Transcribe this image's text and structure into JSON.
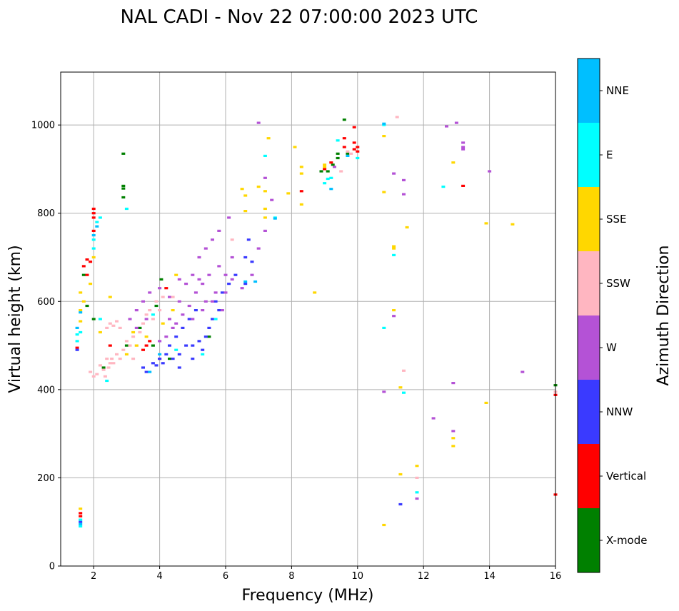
{
  "chart_data": {
    "type": "scatter",
    "title": "NAL CADI - Nov 22 07:00:00 2023 UTC",
    "xlabel": "Frequency (MHz)",
    "ylabel": "Virtual height (km)",
    "xlim": [
      1,
      16
    ],
    "ylim": [
      0,
      1120
    ],
    "xticks": [
      "2",
      "4",
      "6",
      "8",
      "10",
      "12",
      "14",
      "16"
    ],
    "yticks": [
      "0",
      "200",
      "400",
      "600",
      "800",
      "1000"
    ],
    "grid": true,
    "colorbar": {
      "label": "Azimuth Direction",
      "categories": [
        "X-mode",
        "Vertical",
        "NNW",
        "W",
        "SSW",
        "SSE",
        "E",
        "NNE"
      ],
      "colors": [
        "#008000",
        "#ff0000",
        "#3a3aff",
        "#b452d6",
        "#ffb6c1",
        "#ffd700",
        "#00ffff",
        "#00bfff"
      ]
    },
    "series": [
      {
        "name": "X-mode",
        "color": "#008000",
        "points": [
          [
            2.9,
            935
          ],
          [
            2.9,
            862
          ],
          [
            2.9,
            856
          ],
          [
            2.9,
            836
          ],
          [
            1.7,
            660
          ],
          [
            1.8,
            590
          ],
          [
            2.0,
            560
          ],
          [
            4.05,
            650
          ],
          [
            3.9,
            590
          ],
          [
            3.4,
            540
          ],
          [
            3.0,
            500
          ],
          [
            3.8,
            500
          ],
          [
            4.3,
            470
          ],
          [
            5.5,
            520
          ],
          [
            8.9,
            895
          ],
          [
            9.1,
            895
          ],
          [
            9.25,
            910
          ],
          [
            9.4,
            925
          ],
          [
            9.4,
            935
          ],
          [
            9.6,
            1012
          ],
          [
            9.7,
            935
          ],
          [
            16,
            410
          ],
          [
            2.3,
            450
          ]
        ]
      },
      {
        "name": "Vertical",
        "color": "#ff0000",
        "points": [
          [
            2.0,
            810
          ],
          [
            2.0,
            800
          ],
          [
            2.0,
            790
          ],
          [
            2.0,
            760
          ],
          [
            1.8,
            695
          ],
          [
            1.9,
            690
          ],
          [
            1.7,
            680
          ],
          [
            1.8,
            660
          ],
          [
            1.5,
            495
          ],
          [
            1.6,
            120
          ],
          [
            1.6,
            113
          ],
          [
            3.6,
            500
          ],
          [
            3.7,
            510
          ],
          [
            4.0,
            470
          ],
          [
            3.5,
            490
          ],
          [
            4.2,
            630
          ],
          [
            8.3,
            850
          ],
          [
            9.0,
            900
          ],
          [
            9.2,
            915
          ],
          [
            9.6,
            970
          ],
          [
            9.6,
            950
          ],
          [
            9.9,
            995
          ],
          [
            9.9,
            960
          ],
          [
            9.9,
            945
          ],
          [
            10.0,
            940
          ],
          [
            10.0,
            950
          ],
          [
            13.2,
            862
          ],
          [
            16,
            388
          ],
          [
            16,
            162
          ],
          [
            2.5,
            500
          ]
        ]
      },
      {
        "name": "NNW",
        "color": "#3a3aff",
        "points": [
          [
            3.6,
            440
          ],
          [
            3.9,
            455
          ],
          [
            4.1,
            460
          ],
          [
            4.4,
            470
          ],
          [
            4.6,
            480
          ],
          [
            4.8,
            500
          ],
          [
            5.0,
            500
          ],
          [
            5.2,
            510
          ],
          [
            5.4,
            520
          ],
          [
            5.5,
            540
          ],
          [
            5.6,
            560
          ],
          [
            5.7,
            600
          ],
          [
            5.9,
            620
          ],
          [
            6.1,
            640
          ],
          [
            6.3,
            660
          ],
          [
            6.6,
            700
          ],
          [
            6.7,
            740
          ],
          [
            6.8,
            690
          ],
          [
            4.3,
            500
          ],
          [
            4.5,
            520
          ],
          [
            4.7,
            540
          ],
          [
            4.9,
            560
          ],
          [
            5.1,
            580
          ],
          [
            4.2,
            480
          ],
          [
            4.0,
            470
          ],
          [
            3.8,
            460
          ],
          [
            3.5,
            450
          ],
          [
            4.6,
            450
          ],
          [
            5.0,
            470
          ],
          [
            5.3,
            490
          ],
          [
            5.8,
            580
          ],
          [
            6.6,
            640
          ],
          [
            1.5,
            490
          ],
          [
            1.6,
            100
          ],
          [
            11.3,
            140
          ]
        ]
      },
      {
        "name": "W",
        "color": "#b452d6",
        "points": [
          [
            3.1,
            560
          ],
          [
            3.3,
            580
          ],
          [
            3.5,
            600
          ],
          [
            3.7,
            620
          ],
          [
            4.0,
            630
          ],
          [
            4.3,
            610
          ],
          [
            4.6,
            600
          ],
          [
            4.8,
            640
          ],
          [
            5.0,
            660
          ],
          [
            5.2,
            700
          ],
          [
            5.4,
            720
          ],
          [
            5.6,
            740
          ],
          [
            5.8,
            760
          ],
          [
            6.1,
            790
          ],
          [
            6.2,
            700
          ],
          [
            5.8,
            680
          ],
          [
            5.5,
            660
          ],
          [
            5.3,
            640
          ],
          [
            5.1,
            620
          ],
          [
            4.9,
            590
          ],
          [
            4.7,
            570
          ],
          [
            4.5,
            550
          ],
          [
            4.4,
            540
          ],
          [
            4.2,
            520
          ],
          [
            4.0,
            510
          ],
          [
            5.0,
            560
          ],
          [
            5.3,
            580
          ],
          [
            5.6,
            600
          ],
          [
            5.9,
            580
          ],
          [
            6.0,
            620
          ],
          [
            6.2,
            650
          ],
          [
            6.5,
            630
          ],
          [
            6.8,
            660
          ],
          [
            7.0,
            720
          ],
          [
            7.2,
            760
          ],
          [
            5.4,
            600
          ],
          [
            5.7,
            620
          ],
          [
            6.0,
            660
          ],
          [
            3.3,
            540
          ],
          [
            3.6,
            560
          ],
          [
            4.6,
            650
          ],
          [
            5.2,
            650
          ],
          [
            4.3,
            560
          ],
          [
            7.4,
            830
          ],
          [
            7.2,
            880
          ],
          [
            11.1,
            890
          ],
          [
            11.4,
            875
          ],
          [
            11.4,
            843
          ],
          [
            10.8,
            395
          ],
          [
            11.1,
            567
          ],
          [
            11.8,
            153
          ],
          [
            12.3,
            335
          ],
          [
            12.9,
            415
          ],
          [
            12.9,
            306
          ],
          [
            13.0,
            1005
          ],
          [
            13.2,
            960
          ],
          [
            13.2,
            950
          ],
          [
            13.2,
            945
          ],
          [
            14.0,
            895
          ],
          [
            15.0,
            440
          ],
          [
            12.7,
            997
          ],
          [
            9.3,
            905
          ],
          [
            7.0,
            1005
          ]
        ]
      },
      {
        "name": "SSW",
        "color": "#ffb6c1",
        "points": [
          [
            1.9,
            440
          ],
          [
            2.1,
            435
          ],
          [
            2.3,
            445
          ],
          [
            2.5,
            460
          ],
          [
            2.4,
            470
          ],
          [
            2.6,
            460
          ],
          [
            2.8,
            470
          ],
          [
            2.7,
            480
          ],
          [
            2.9,
            490
          ],
          [
            3.1,
            500
          ],
          [
            3.2,
            520
          ],
          [
            3.4,
            530
          ],
          [
            3.5,
            550
          ],
          [
            3.6,
            570
          ],
          [
            3.7,
            580
          ],
          [
            3.9,
            600
          ],
          [
            4.1,
            610
          ],
          [
            2.5,
            550
          ],
          [
            2.6,
            545
          ],
          [
            2.7,
            555
          ],
          [
            2.4,
            540
          ],
          [
            2.8,
            540
          ],
          [
            3.0,
            510
          ],
          [
            3.3,
            500
          ],
          [
            2.2,
            455
          ],
          [
            2.35,
            430
          ],
          [
            2.45,
            450
          ],
          [
            2.55,
            470
          ],
          [
            3.8,
            560
          ],
          [
            4.0,
            580
          ],
          [
            4.4,
            610
          ],
          [
            3.2,
            470
          ],
          [
            2.0,
            430
          ],
          [
            6.2,
            740
          ],
          [
            9.7,
            940
          ],
          [
            9.8,
            935
          ],
          [
            9.5,
            895
          ],
          [
            11.2,
            1018
          ],
          [
            11.4,
            443
          ],
          [
            11.8,
            200
          ],
          [
            16,
            395
          ]
        ]
      },
      {
        "name": "SSE",
        "color": "#ffd700",
        "points": [
          [
            1.6,
            620
          ],
          [
            1.6,
            580
          ],
          [
            1.6,
            555
          ],
          [
            1.7,
            600
          ],
          [
            2.0,
            700
          ],
          [
            1.9,
            640
          ],
          [
            2.2,
            530
          ],
          [
            2.5,
            610
          ],
          [
            3.0,
            480
          ],
          [
            3.3,
            500
          ],
          [
            3.6,
            520
          ],
          [
            4.1,
            550
          ],
          [
            4.4,
            580
          ],
          [
            3.2,
            530
          ],
          [
            4.5,
            660
          ],
          [
            6.5,
            855
          ],
          [
            6.6,
            840
          ],
          [
            6.6,
            805
          ],
          [
            7.0,
            860
          ],
          [
            7.2,
            850
          ],
          [
            7.2,
            790
          ],
          [
            7.2,
            810
          ],
          [
            7.3,
            970
          ],
          [
            7.9,
            845
          ],
          [
            8.1,
            950
          ],
          [
            8.3,
            905
          ],
          [
            8.3,
            890
          ],
          [
            8.3,
            820
          ],
          [
            8.7,
            620
          ],
          [
            9.0,
            905
          ],
          [
            9.0,
            910
          ],
          [
            10.8,
            975
          ],
          [
            10.8,
            848
          ],
          [
            11.1,
            725
          ],
          [
            11.1,
            720
          ],
          [
            11.1,
            580
          ],
          [
            11.3,
            405
          ],
          [
            11.3,
            208
          ],
          [
            11.5,
            768
          ],
          [
            11.8,
            227
          ],
          [
            12.9,
            290
          ],
          [
            12.9,
            272
          ],
          [
            12.9,
            915
          ],
          [
            13.9,
            370
          ],
          [
            13.9,
            777
          ],
          [
            14.7,
            775
          ],
          [
            10.8,
            93
          ],
          [
            1.6,
            130
          ]
        ]
      },
      {
        "name": "E",
        "color": "#00ffff",
        "points": [
          [
            1.5,
            525
          ],
          [
            1.5,
            510
          ],
          [
            1.6,
            530
          ],
          [
            2.0,
            720
          ],
          [
            2.0,
            740
          ],
          [
            2.1,
            780
          ],
          [
            2.2,
            790
          ],
          [
            2.2,
            560
          ],
          [
            2.4,
            420
          ],
          [
            3.0,
            810
          ],
          [
            3.8,
            570
          ],
          [
            4.5,
            490
          ],
          [
            5.3,
            480
          ],
          [
            5.7,
            560
          ],
          [
            7.2,
            930
          ],
          [
            7.5,
            790
          ],
          [
            9.0,
            868
          ],
          [
            9.1,
            878
          ],
          [
            9.2,
            880
          ],
          [
            9.4,
            965
          ],
          [
            10.0,
            925
          ],
          [
            10.8,
            540
          ],
          [
            10.8,
            1000
          ],
          [
            11.1,
            705
          ],
          [
            11.4,
            393
          ],
          [
            11.8,
            167
          ],
          [
            12.6,
            860
          ],
          [
            1.6,
            90
          ],
          [
            1.6,
            105
          ]
        ]
      },
      {
        "name": "NNE",
        "color": "#00bfff",
        "points": [
          [
            1.5,
            540
          ],
          [
            1.6,
            575
          ],
          [
            2.0,
            750
          ],
          [
            2.1,
            770
          ],
          [
            3.7,
            440
          ],
          [
            4.0,
            480
          ],
          [
            6.6,
            645
          ],
          [
            6.9,
            645
          ],
          [
            7.5,
            788
          ],
          [
            9.2,
            855
          ],
          [
            9.7,
            930
          ],
          [
            10.8,
            1003
          ],
          [
            1.6,
            95
          ]
        ]
      }
    ]
  }
}
